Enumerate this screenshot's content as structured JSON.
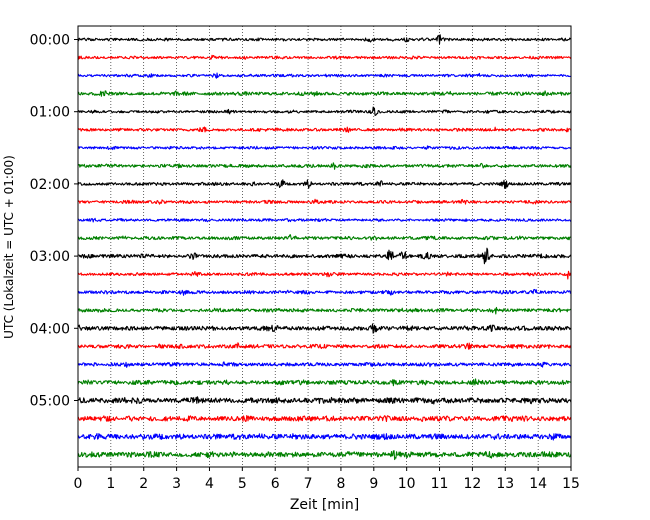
{
  "chart_data": {
    "type": "line",
    "title": "",
    "xlabel": "Zeit  [min]",
    "ylabel": "UTC (Lokalzeit = UTC + 01:00)",
    "xlim": [
      0,
      15
    ],
    "x_ticks": [
      0,
      1,
      2,
      3,
      4,
      5,
      6,
      7,
      8,
      9,
      10,
      11,
      12,
      13,
      14,
      15
    ],
    "x_tick_labels": [
      "0",
      "1",
      "2",
      "3",
      "4",
      "5",
      "6",
      "7",
      "8",
      "9",
      "10",
      "11",
      "12",
      "13",
      "14",
      "15"
    ],
    "y_tick_labels": [
      {
        "label": "00:00",
        "row": 0
      },
      {
        "label": "01:00",
        "row": 4
      },
      {
        "label": "02:00",
        "row": 8
      },
      {
        "label": "03:00",
        "row": 12
      },
      {
        "label": "04:00",
        "row": 16
      },
      {
        "label": "05:00",
        "row": 20
      }
    ],
    "grid": "vertical dotted at each minute",
    "trace_minutes": 15,
    "color_cycle": [
      "#000000",
      "#ff0000",
      "#0000ff",
      "#008000"
    ],
    "traces": [
      {
        "start": "00:00",
        "amplitude": 1.0,
        "bursts": [
          [
            11.0,
            3.0
          ],
          [
            10.0,
            1.6
          ],
          [
            9.5,
            1.5
          ],
          [
            8.9,
            1.4
          ],
          [
            5.5,
            1.2
          ]
        ]
      },
      {
        "start": "00:15",
        "amplitude": 1.0,
        "bursts": [
          [
            4.1,
            1.6
          ],
          [
            10.2,
            1.5
          ],
          [
            5.1,
            1.3
          ]
        ]
      },
      {
        "start": "00:30",
        "amplitude": 1.0,
        "bursts": [
          [
            4.2,
            1.8
          ],
          [
            2.2,
            1.5
          ],
          [
            12.2,
            1.5
          ],
          [
            6.5,
            1.3
          ]
        ]
      },
      {
        "start": "00:45",
        "amplitude": 1.3,
        "bursts": [
          [
            0.8,
            1.8
          ],
          [
            3.0,
            1.5
          ],
          [
            7.2,
            1.6
          ],
          [
            11.3,
            1.5
          ],
          [
            14.2,
            1.8
          ]
        ]
      },
      {
        "start": "01:00",
        "amplitude": 1.0,
        "bursts": [
          [
            9.0,
            2.6
          ],
          [
            4.6,
            1.8
          ],
          [
            11.2,
            1.4
          ]
        ]
      },
      {
        "start": "01:15",
        "amplitude": 1.1,
        "bursts": [
          [
            3.8,
            1.8
          ],
          [
            6.0,
            1.4
          ],
          [
            8.2,
            1.5
          ],
          [
            12.7,
            1.6
          ],
          [
            14.9,
            1.5
          ]
        ]
      },
      {
        "start": "01:30",
        "amplitude": 1.0,
        "bursts": [
          [
            1.0,
            1.4
          ],
          [
            5.8,
            1.3
          ],
          [
            10.6,
            1.4
          ]
        ]
      },
      {
        "start": "01:45",
        "amplitude": 1.2,
        "bursts": [
          [
            7.8,
            2.0
          ],
          [
            3.1,
            1.4
          ],
          [
            12.3,
            1.5
          ]
        ]
      },
      {
        "start": "02:00",
        "amplitude": 1.1,
        "bursts": [
          [
            6.2,
            2.6
          ],
          [
            7.0,
            2.4
          ],
          [
            5.3,
            1.8
          ],
          [
            9.2,
            2.2
          ],
          [
            13.0,
            2.4
          ],
          [
            3.7,
            1.6
          ]
        ]
      },
      {
        "start": "02:15",
        "amplitude": 1.1,
        "bursts": [
          [
            2.5,
            1.6
          ],
          [
            7.2,
            1.8
          ],
          [
            11.7,
            1.5
          ],
          [
            13.9,
            1.4
          ]
        ]
      },
      {
        "start": "02:30",
        "amplitude": 1.0,
        "bursts": [
          [
            0.5,
            1.5
          ],
          [
            3.9,
            1.4
          ],
          [
            6.4,
            1.4
          ],
          [
            12.5,
            1.4
          ]
        ]
      },
      {
        "start": "02:45",
        "amplitude": 1.2,
        "bursts": [
          [
            1.4,
            1.7
          ],
          [
            6.5,
            1.8
          ],
          [
            9.0,
            1.4
          ],
          [
            13.5,
            1.5
          ]
        ]
      },
      {
        "start": "03:00",
        "amplitude": 1.4,
        "bursts": [
          [
            9.5,
            3.4
          ],
          [
            9.9,
            3.0
          ],
          [
            12.4,
            4.2
          ],
          [
            3.5,
            2.0
          ],
          [
            10.6,
            2.0
          ],
          [
            1.1,
            1.5
          ]
        ]
      },
      {
        "start": "03:15",
        "amplitude": 1.1,
        "bursts": [
          [
            7.6,
            1.8
          ],
          [
            14.9,
            2.6
          ],
          [
            3.6,
            1.5
          ],
          [
            11.2,
            1.4
          ]
        ]
      },
      {
        "start": "03:30",
        "amplitude": 1.2,
        "bursts": [
          [
            3.2,
            1.7
          ],
          [
            9.5,
            1.7
          ],
          [
            13.9,
            1.8
          ],
          [
            6.4,
            1.5
          ]
        ]
      },
      {
        "start": "03:45",
        "amplitude": 1.3,
        "bursts": [
          [
            12.7,
            1.9
          ],
          [
            0.3,
            1.6
          ],
          [
            5.8,
            1.5
          ],
          [
            9.8,
            1.6
          ]
        ]
      },
      {
        "start": "04:00",
        "amplitude": 1.6,
        "bursts": [
          [
            9.0,
            2.6
          ],
          [
            0.0,
            2.0
          ],
          [
            6.0,
            1.9
          ],
          [
            12.6,
            1.7
          ]
        ]
      },
      {
        "start": "04:15",
        "amplitude": 1.4,
        "bursts": [
          [
            4.9,
            1.9
          ],
          [
            11.9,
            1.8
          ],
          [
            14.3,
            1.7
          ],
          [
            2.5,
            1.5
          ]
        ]
      },
      {
        "start": "04:30",
        "amplitude": 1.3,
        "bursts": [
          [
            1.5,
            1.7
          ],
          [
            4.5,
            1.6
          ],
          [
            10.7,
            1.7
          ],
          [
            14.1,
            1.8
          ]
        ]
      },
      {
        "start": "04:45",
        "amplitude": 1.6,
        "bursts": [
          [
            3.0,
            1.7
          ],
          [
            6.8,
            1.8
          ],
          [
            9.6,
            1.6
          ],
          [
            12.1,
            1.6
          ]
        ]
      },
      {
        "start": "05:00",
        "amplitude": 2.0,
        "bursts": [
          [
            7.4,
            1.6
          ],
          [
            8.4,
            1.6
          ],
          [
            10.8,
            1.6
          ],
          [
            3.6,
            1.5
          ],
          [
            1.4,
            1.5
          ]
        ]
      },
      {
        "start": "05:15",
        "amplitude": 1.9,
        "bursts": [
          [
            2.3,
            1.5
          ],
          [
            6.6,
            1.5
          ],
          [
            10.5,
            1.6
          ],
          [
            13.2,
            1.5
          ]
        ]
      },
      {
        "start": "05:30",
        "amplitude": 2.0,
        "bursts": [
          [
            2.0,
            1.5
          ],
          [
            5.5,
            1.6
          ],
          [
            9.4,
            1.6
          ],
          [
            14.5,
            1.6
          ]
        ]
      },
      {
        "start": "05:45",
        "amplitude": 2.0,
        "bursts": [
          [
            9.6,
            2.4
          ],
          [
            1.6,
            1.6
          ],
          [
            4.8,
            1.5
          ],
          [
            12.5,
            1.5
          ]
        ]
      }
    ]
  }
}
